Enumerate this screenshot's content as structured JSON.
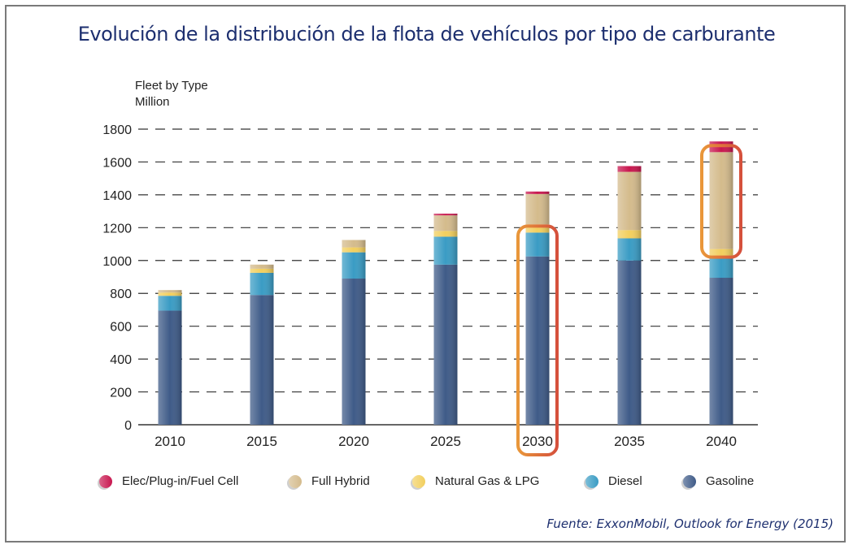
{
  "title": "Evolución de la distribución de la flota de vehículos por tipo de carburante",
  "source": "Fuente: ExxonMobil, Outlook for Energy (2015)",
  "chart_data": {
    "type": "bar",
    "stacked": true,
    "ylabel_line1": "Fleet by Type",
    "ylabel_line2": "Million",
    "ylim": [
      0,
      1800
    ],
    "yticks": [
      0,
      200,
      400,
      600,
      800,
      1000,
      1200,
      1400,
      1600,
      1800
    ],
    "grid": "dashed-horizontal",
    "legend_placement": "bottom",
    "categories": [
      "2010",
      "2015",
      "2020",
      "2025",
      "2030",
      "2035",
      "2040"
    ],
    "series": [
      {
        "name": "Gasoline",
        "color": "#3f5b88",
        "values": [
          695,
          790,
          890,
          975,
          1025,
          1000,
          895
        ]
      },
      {
        "name": "Diesel",
        "color": "#3a9cc4",
        "values": [
          90,
          135,
          160,
          170,
          145,
          135,
          130
        ]
      },
      {
        "name": "Natural Gas & LPG",
        "color": "#f2cf5e",
        "values": [
          20,
          25,
          30,
          35,
          50,
          50,
          45
        ]
      },
      {
        "name": "Full Hybrid",
        "color": "#d4bb8c",
        "values": [
          15,
          25,
          45,
          95,
          185,
          355,
          590
        ]
      },
      {
        "name": "Elec/Plug-in/Fuel Cell",
        "color": "#c8174f",
        "values": [
          0,
          0,
          0,
          10,
          15,
          35,
          65
        ]
      }
    ],
    "legend_order": [
      "Elec/Plug-in/Fuel Cell",
      "Full Hybrid",
      "Natural Gas & LPG",
      "Diesel",
      "Gasoline"
    ],
    "highlights": [
      {
        "category": "2030",
        "segments": [
          "Gasoline",
          "Diesel"
        ],
        "color": "#d9623a"
      },
      {
        "category": "2040",
        "segments": [
          "Full Hybrid"
        ],
        "color": "#d9623a"
      }
    ]
  }
}
